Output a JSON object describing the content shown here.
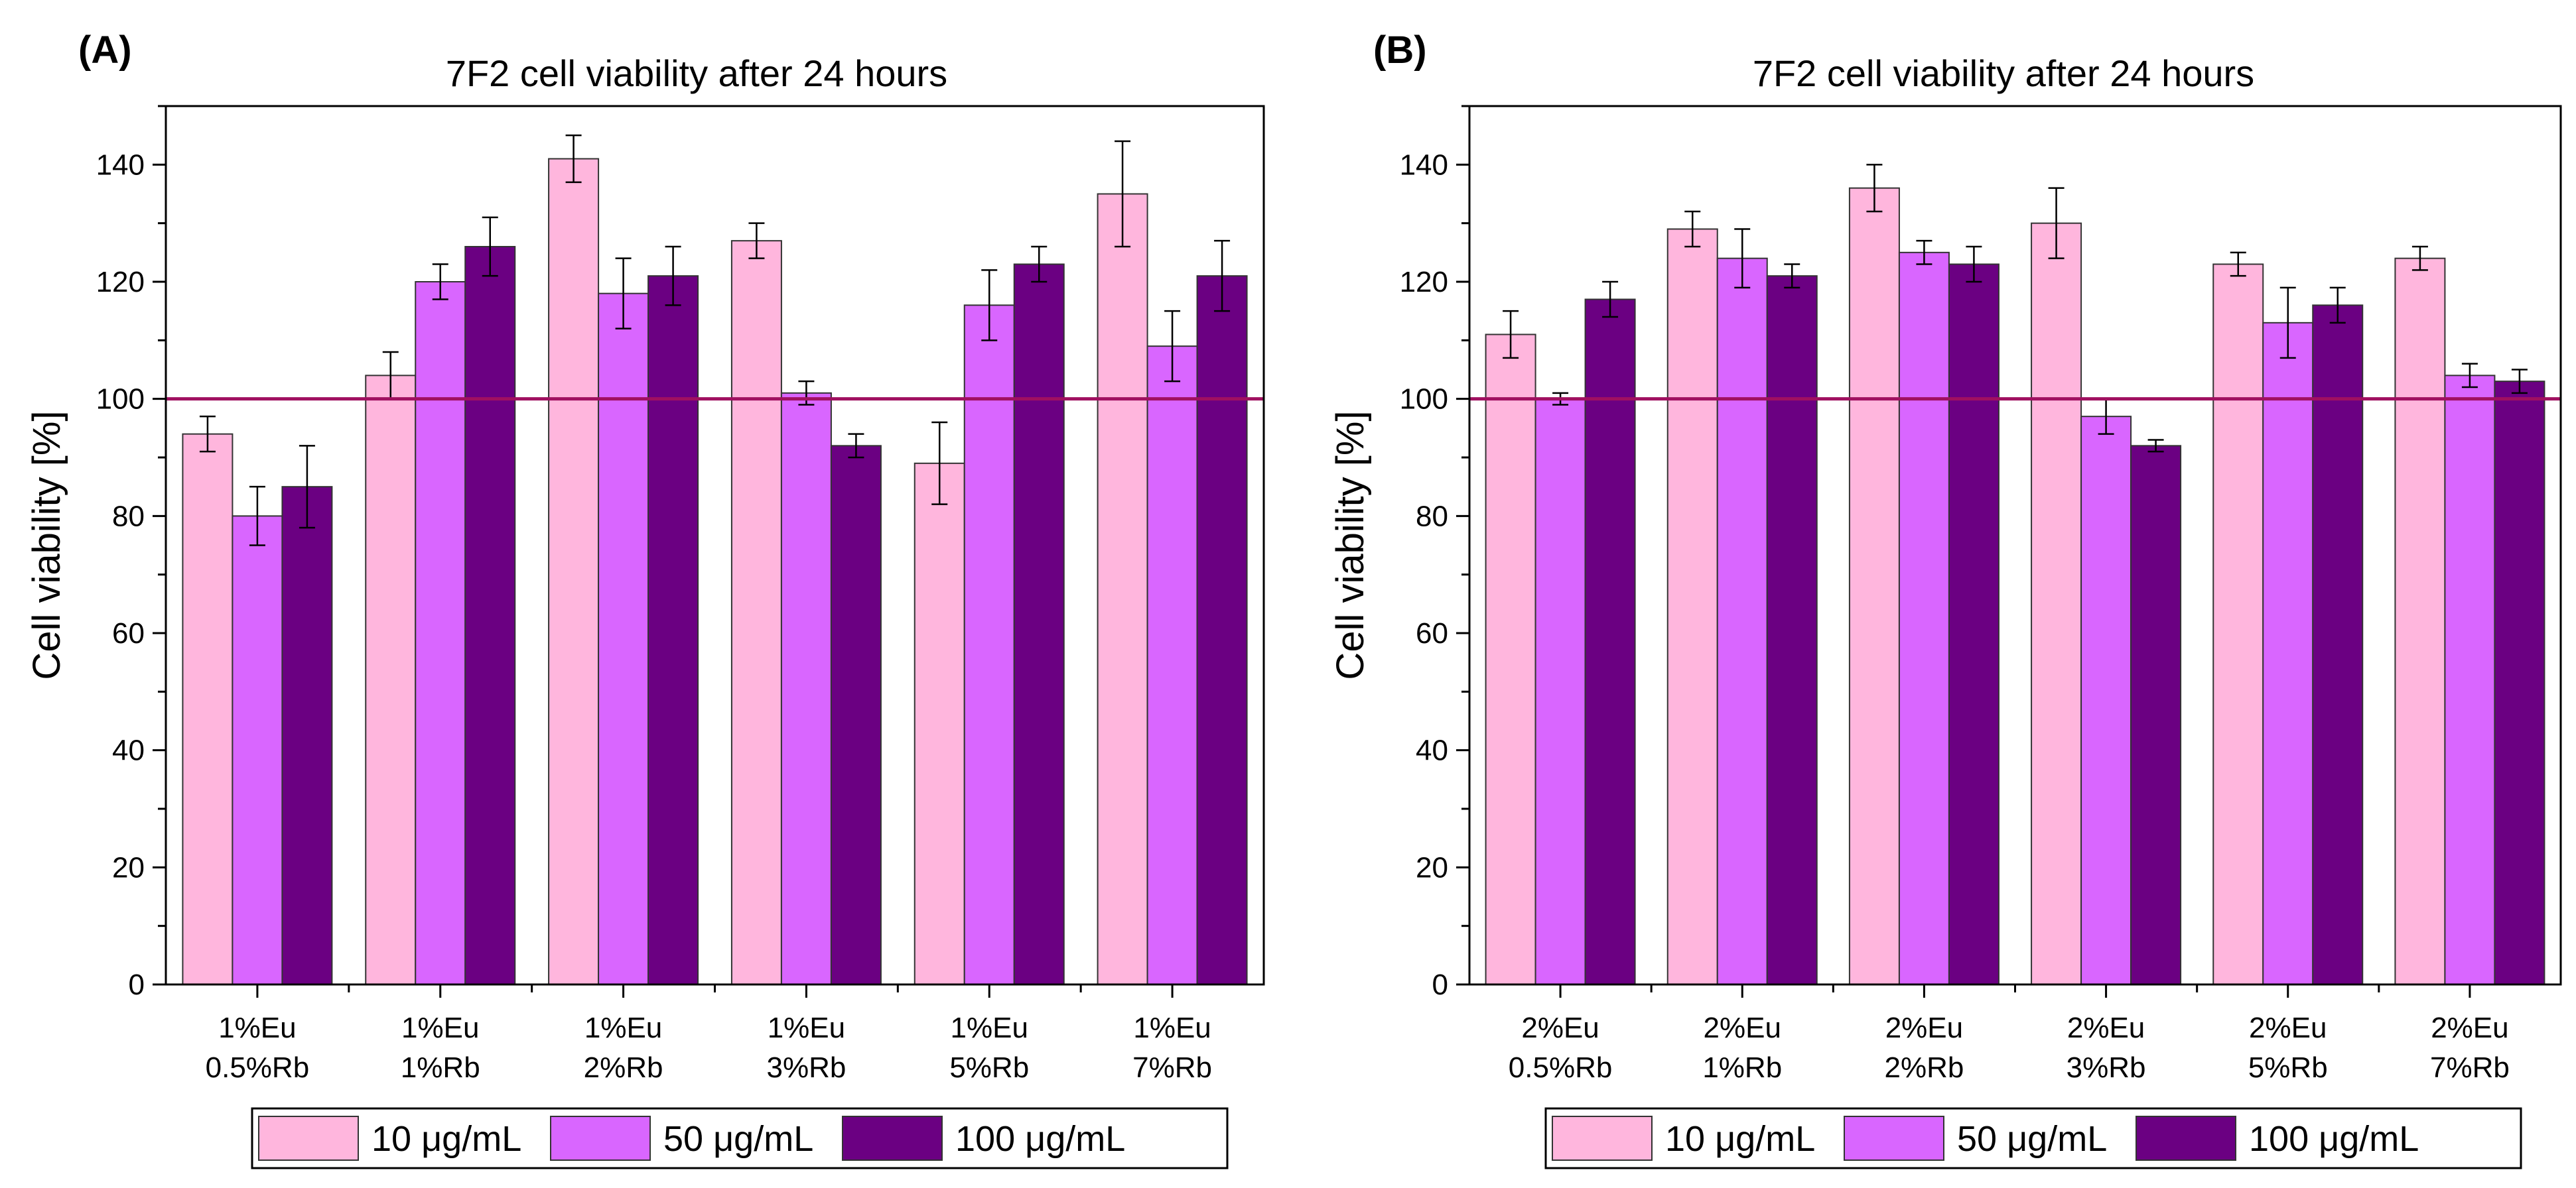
{
  "colors": {
    "series": [
      "#ffb6dd",
      "#d966ff",
      "#6b0082"
    ],
    "reference_line": "#a01060",
    "axis": "#000000"
  },
  "chart_data": [
    {
      "panel_label": "(A)",
      "type": "bar",
      "title": "7F2 cell viability after 24 hours",
      "xlabel": "",
      "ylabel": "Cell viability [%]",
      "ylim": [
        0,
        150
      ],
      "yticks": [
        0,
        20,
        40,
        60,
        80,
        100,
        120,
        140
      ],
      "reference_line": 100,
      "categories": [
        [
          "1%Eu",
          "0.5%Rb"
        ],
        [
          "1%Eu",
          "1%Rb"
        ],
        [
          "1%Eu",
          "2%Rb"
        ],
        [
          "1%Eu",
          "3%Rb"
        ],
        [
          "1%Eu",
          "5%Rb"
        ],
        [
          "1%Eu",
          "7%Rb"
        ]
      ],
      "series": [
        {
          "name": "10 μg/mL",
          "values": [
            94,
            104,
            141,
            127,
            89,
            135
          ],
          "errors": [
            3,
            4,
            4,
            3,
            7,
            9
          ]
        },
        {
          "name": "50 μg/mL",
          "values": [
            80,
            120,
            118,
            101,
            116,
            109
          ],
          "errors": [
            5,
            3,
            6,
            2,
            6,
            6
          ]
        },
        {
          "name": "100 μg/mL",
          "values": [
            85,
            126,
            121,
            92,
            123,
            121
          ],
          "errors": [
            7,
            5,
            5,
            2,
            3,
            6
          ]
        }
      ],
      "legend_position": "bottom"
    },
    {
      "panel_label": "(B)",
      "type": "bar",
      "title": "7F2 cell viability after 24 hours",
      "xlabel": "",
      "ylabel": "Cell viability [%]",
      "ylim": [
        0,
        150
      ],
      "yticks": [
        0,
        20,
        40,
        60,
        80,
        100,
        120,
        140
      ],
      "reference_line": 100,
      "categories": [
        [
          "2%Eu",
          "0.5%Rb"
        ],
        [
          "2%Eu",
          "1%Rb"
        ],
        [
          "2%Eu",
          "2%Rb"
        ],
        [
          "2%Eu",
          "3%Rb"
        ],
        [
          "2%Eu",
          "5%Rb"
        ],
        [
          "2%Eu",
          "7%Rb"
        ]
      ],
      "series": [
        {
          "name": "10 μg/mL",
          "values": [
            111,
            129,
            136,
            130,
            123,
            124
          ],
          "errors": [
            4,
            3,
            4,
            6,
            2,
            2
          ]
        },
        {
          "name": "50 μg/mL",
          "values": [
            100,
            124,
            125,
            97,
            113,
            104
          ],
          "errors": [
            1,
            5,
            2,
            3,
            6,
            2
          ]
        },
        {
          "name": "100 μg/mL",
          "values": [
            117,
            121,
            123,
            92,
            116,
            103
          ],
          "errors": [
            3,
            2,
            3,
            1,
            3,
            2
          ]
        }
      ],
      "legend_position": "bottom"
    }
  ]
}
